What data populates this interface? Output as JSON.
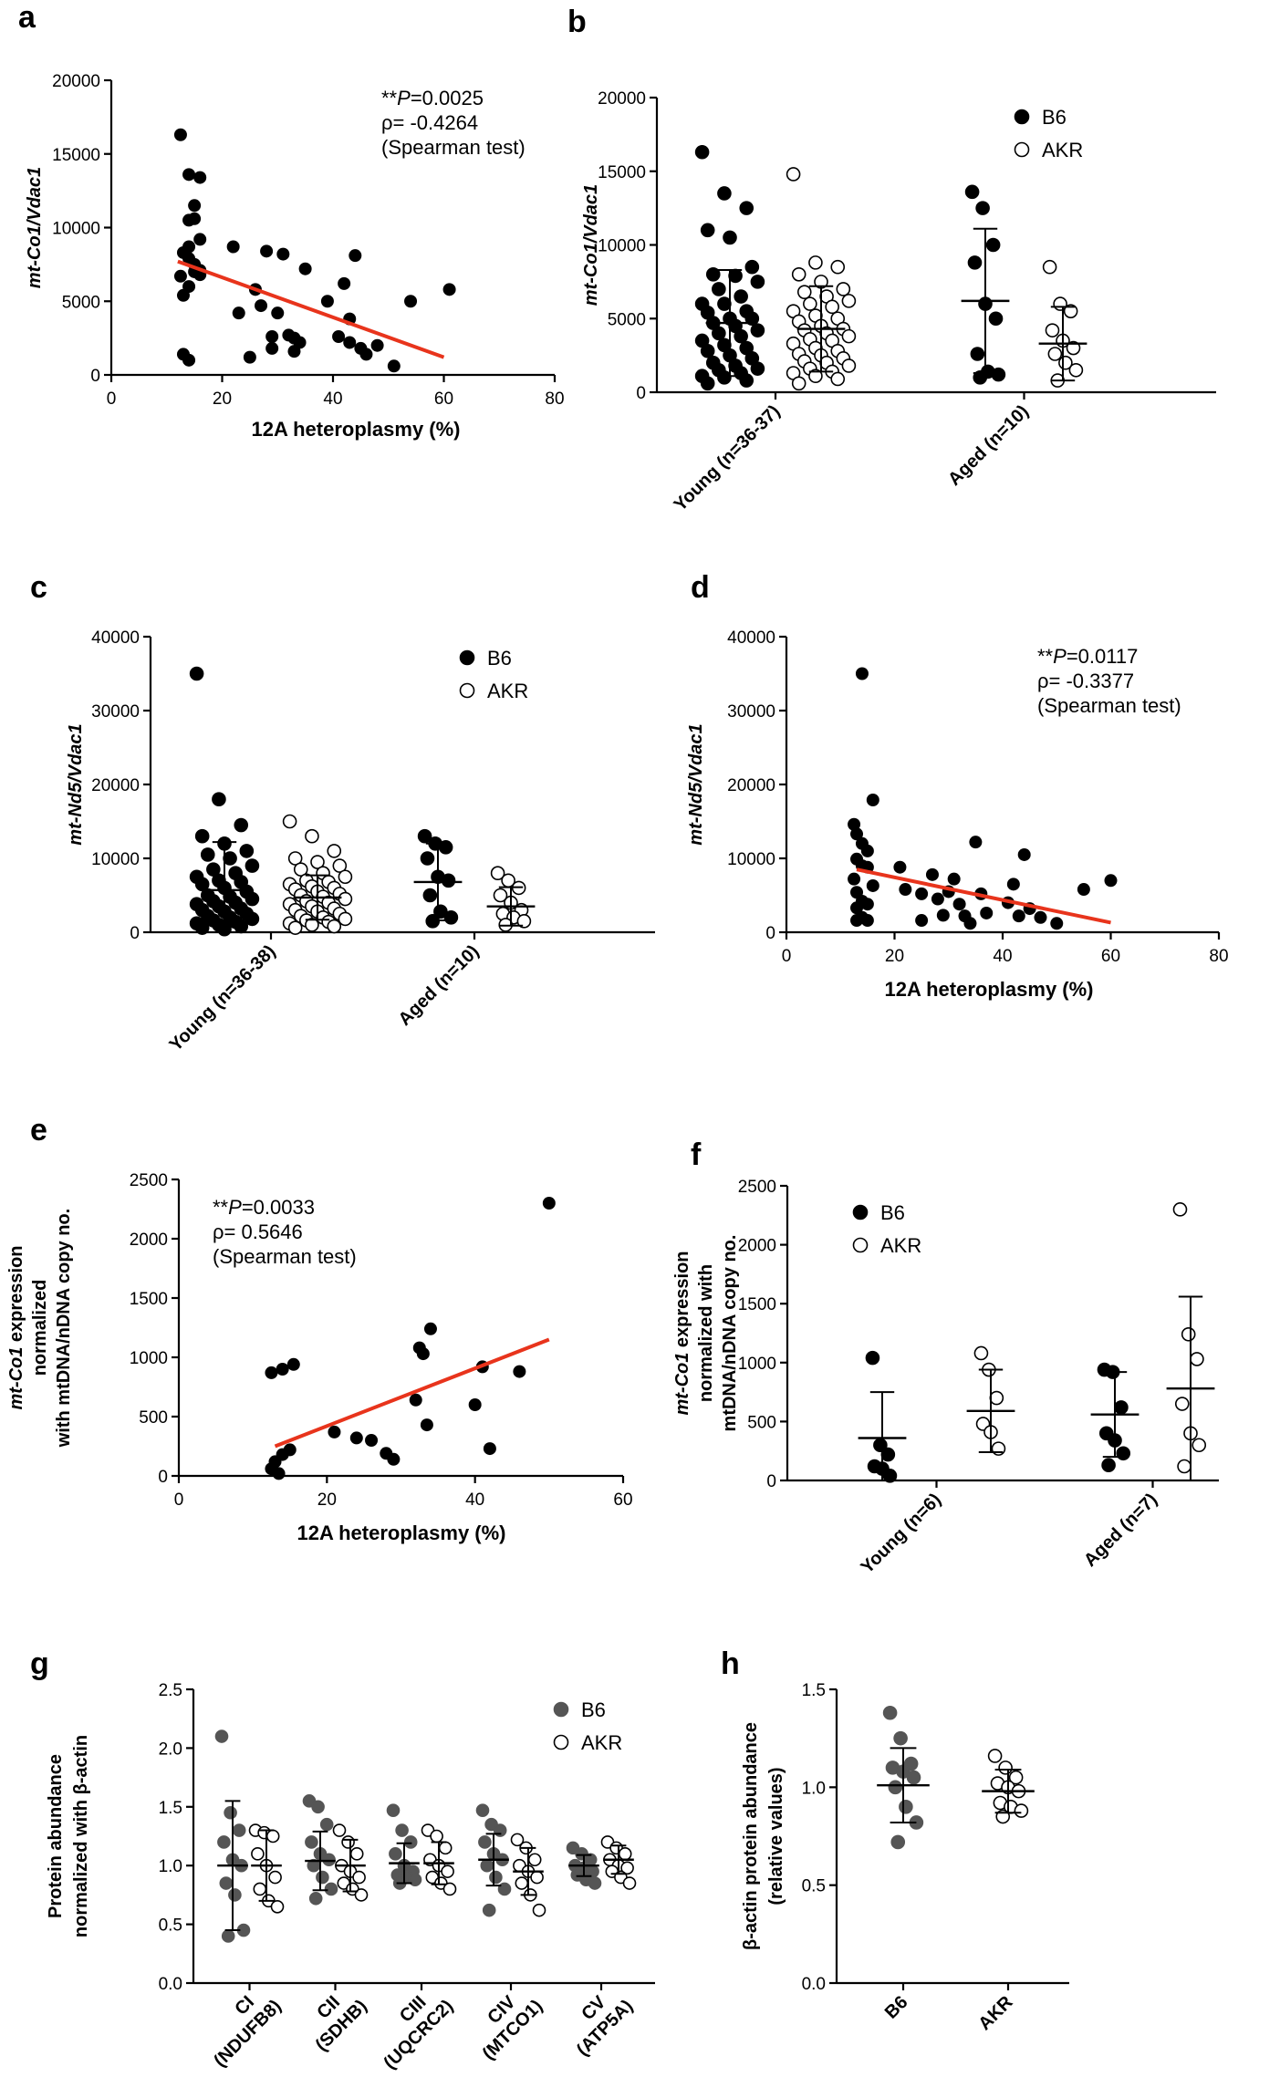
{
  "colors": {
    "trend": "#e8341c",
    "filled": "#000000",
    "filled_gray": "#555555",
    "open_fill": "#ffffff"
  },
  "chart_data": [
    {
      "panel": "a",
      "type": "scatter",
      "ylabel": "mt-Co1/Vdac1",
      "xlabel": "12A heteroplasmy (%)",
      "xlim": [
        0,
        80
      ],
      "ylim": [
        0,
        20000
      ],
      "xticks": [
        "0",
        "20",
        "40",
        "60",
        "80"
      ],
      "yticks": [
        "0",
        "5000",
        "10000",
        "15000",
        "20000"
      ],
      "annotation": [
        "**P=0.0025",
        "ρ= -0.4264",
        "(Spearman test)"
      ],
      "trend": {
        "x": [
          12,
          60
        ],
        "y": [
          7700,
          1200
        ]
      },
      "points": [
        [
          12.5,
          16300
        ],
        [
          12.5,
          6700
        ],
        [
          13,
          5400
        ],
        [
          13,
          8300
        ],
        [
          13,
          1400
        ],
        [
          14,
          7900
        ],
        [
          14,
          13600
        ],
        [
          14,
          8700
        ],
        [
          14,
          10500
        ],
        [
          14,
          6000
        ],
        [
          14,
          1000
        ],
        [
          15,
          10600
        ],
        [
          15,
          11500
        ],
        [
          15,
          7500
        ],
        [
          15,
          7000
        ],
        [
          16,
          13400
        ],
        [
          16,
          9200
        ],
        [
          16,
          6800
        ],
        [
          16,
          7100
        ],
        [
          22,
          8700
        ],
        [
          23,
          4200
        ],
        [
          25,
          1200
        ],
        [
          26,
          5800
        ],
        [
          27,
          4700
        ],
        [
          28,
          8400
        ],
        [
          29,
          1800
        ],
        [
          29,
          2600
        ],
        [
          30,
          4200
        ],
        [
          31,
          8200
        ],
        [
          32,
          2700
        ],
        [
          33,
          1600
        ],
        [
          33,
          2500
        ],
        [
          34,
          2200
        ],
        [
          35,
          7200
        ],
        [
          39,
          5000
        ],
        [
          41,
          2600
        ],
        [
          42,
          6200
        ],
        [
          43,
          3800
        ],
        [
          43,
          2200
        ],
        [
          44,
          8100
        ],
        [
          45,
          1800
        ],
        [
          46,
          1400
        ],
        [
          48,
          2000
        ],
        [
          51,
          600
        ],
        [
          54,
          5000
        ],
        [
          61,
          5800
        ]
      ]
    },
    {
      "panel": "b",
      "type": "scatter",
      "ylabel": "mt-Co1/Vdac1",
      "categories": [
        "Young (n=36-37)",
        "Aged (n=10)"
      ],
      "ylim": [
        0,
        20000
      ],
      "yticks": [
        "0",
        "5000",
        "10000",
        "15000",
        "20000"
      ],
      "legend": [
        "B6",
        "AKR"
      ],
      "series": [
        {
          "name": "B6",
          "mean": [
            4700,
            6200
          ],
          "sd": [
            3600,
            4900
          ],
          "values": [
            [
              16300,
              13500,
              12500,
              11000,
              10500,
              8500,
              8000,
              7900,
              7500,
              7000,
              6500,
              6000,
              6000,
              5500,
              5400,
              5000,
              5000,
              4700,
              4500,
              4200,
              4000,
              3800,
              3500,
              3200,
              3000,
              2800,
              2500,
              2300,
              2000,
              1800,
              1600,
              1500,
              1300,
              1100,
              1000,
              800,
              600
            ],
            [
              13600,
              12500,
              10000,
              8800,
              6000,
              5000,
              2600,
              1400,
              1200,
              1000
            ]
          ]
        },
        {
          "name": "AKR",
          "mean": [
            4300,
            3300
          ],
          "sd": [
            2900,
            2500
          ],
          "values": [
            [
              14800,
              8800,
              8500,
              8000,
              7500,
              7000,
              6800,
              6500,
              6200,
              6000,
              5800,
              5500,
              5200,
              5000,
              4800,
              4500,
              4300,
              4200,
              4000,
              3800,
              3600,
              3500,
              3300,
              3000,
              2800,
              2600,
              2500,
              2300,
              2100,
              2000,
              1800,
              1600,
              1400,
              1300,
              1100,
              900,
              600
            ],
            [
              8500,
              6000,
              5500,
              4200,
              3500,
              3000,
              2600,
              2000,
              1500,
              800
            ]
          ]
        }
      ]
    },
    {
      "panel": "c",
      "type": "scatter",
      "ylabel": "mt-Nd5/Vdac1",
      "categories": [
        "Young (n=36-38)",
        "Aged (n=10)"
      ],
      "ylim": [
        0,
        40000
      ],
      "yticks": [
        "0",
        "10000",
        "20000",
        "30000",
        "40000"
      ],
      "legend": [
        "B6",
        "AKR"
      ],
      "series": [
        {
          "name": "B6",
          "mean": [
            5700,
            6800
          ],
          "sd": [
            6500,
            5200
          ],
          "values": [
            [
              35000,
              18000,
              14500,
              13000,
              12000,
              11000,
              10500,
              10000,
              9000,
              8500,
              8000,
              7500,
              7000,
              6800,
              6500,
              6000,
              5500,
              5000,
              4800,
              4500,
              4200,
              4000,
              3800,
              3500,
              3200,
              3000,
              2800,
              2500,
              2200,
              2000,
              1800,
              1600,
              1400,
              1200,
              1000,
              800,
              600,
              400
            ],
            [
              13000,
              12000,
              11500,
              10000,
              7500,
              7000,
              5000,
              2800,
              2000,
              1500
            ]
          ]
        },
        {
          "name": "AKR",
          "mean": [
            4700,
            3500
          ],
          "sd": [
            3000,
            2600
          ],
          "values": [
            [
              15000,
              13000,
              11000,
              10000,
              9500,
              9000,
              8500,
              8000,
              7500,
              7000,
              6800,
              6500,
              6200,
              6000,
              5800,
              5500,
              5200,
              5000,
              4800,
              4500,
              4200,
              4000,
              3800,
              3500,
              3200,
              3000,
              2800,
              2500,
              2200,
              2000,
              1800,
              1600,
              1400,
              1200,
              1000,
              800,
              600
            ],
            [
              8000,
              7000,
              6000,
              5000,
              4000,
              3000,
              2500,
              2000,
              1500,
              1000
            ]
          ]
        }
      ]
    },
    {
      "panel": "d",
      "type": "scatter",
      "ylabel": "mt-Nd5/Vdac1",
      "xlabel": "12A heteroplasmy (%)",
      "xlim": [
        0,
        80
      ],
      "ylim": [
        0,
        40000
      ],
      "xticks": [
        "0",
        "20",
        "40",
        "60",
        "80"
      ],
      "yticks": [
        "0",
        "10000",
        "20000",
        "30000",
        "40000"
      ],
      "annotation": [
        "**P=0.0117",
        "ρ= -0.3377",
        "(Spearman test)"
      ],
      "trend": {
        "x": [
          13,
          60
        ],
        "y": [
          8500,
          1300
        ]
      },
      "points": [
        [
          12.5,
          14600
        ],
        [
          12.5,
          7200
        ],
        [
          13,
          13300
        ],
        [
          13,
          9900
        ],
        [
          13,
          5400
        ],
        [
          13,
          3300
        ],
        [
          13,
          1600
        ],
        [
          14,
          35000
        ],
        [
          14,
          12000
        ],
        [
          14,
          9000
        ],
        [
          14,
          4200
        ],
        [
          14,
          2000
        ],
        [
          15,
          11000
        ],
        [
          15,
          8800
        ],
        [
          15,
          3800
        ],
        [
          15,
          1600
        ],
        [
          16,
          17900
        ],
        [
          16,
          6300
        ],
        [
          21,
          8800
        ],
        [
          22,
          5800
        ],
        [
          25,
          1600
        ],
        [
          25,
          5200
        ],
        [
          27,
          7800
        ],
        [
          28,
          4500
        ],
        [
          29,
          2300
        ],
        [
          30,
          5500
        ],
        [
          31,
          7200
        ],
        [
          32,
          3800
        ],
        [
          33,
          2200
        ],
        [
          34,
          1200
        ],
        [
          35,
          12200
        ],
        [
          36,
          5200
        ],
        [
          37,
          2600
        ],
        [
          41,
          4000
        ],
        [
          42,
          6500
        ],
        [
          43,
          2200
        ],
        [
          44,
          10500
        ],
        [
          45,
          3200
        ],
        [
          47,
          2000
        ],
        [
          50,
          1200
        ],
        [
          55,
          5800
        ],
        [
          60,
          7000
        ]
      ]
    },
    {
      "panel": "e",
      "type": "scatter",
      "ylabel": "mt-Co1 expression normalized with mtDNA/nDNA copy no.",
      "xlabel": "12A heteroplasmy (%)",
      "xlim": [
        0,
        60
      ],
      "ylim": [
        0,
        2500
      ],
      "xticks": [
        "0",
        "20",
        "40",
        "60"
      ],
      "yticks": [
        "0",
        "500",
        "1000",
        "1500",
        "2000",
        "2500"
      ],
      "annotation": [
        "**P=0.0033",
        "ρ= 0.5646",
        "(Spearman test)"
      ],
      "trend": {
        "x": [
          13,
          50
        ],
        "y": [
          250,
          1150
        ]
      },
      "points": [
        [
          12.5,
          870
        ],
        [
          12.5,
          60
        ],
        [
          13,
          120
        ],
        [
          13.5,
          20
        ],
        [
          14,
          900
        ],
        [
          14,
          180
        ],
        [
          15,
          220
        ],
        [
          15.5,
          940
        ],
        [
          21,
          370
        ],
        [
          24,
          320
        ],
        [
          26,
          300
        ],
        [
          28,
          190
        ],
        [
          29,
          140
        ],
        [
          32,
          640
        ],
        [
          32.5,
          1080
        ],
        [
          33,
          1030
        ],
        [
          34,
          1240
        ],
        [
          33.5,
          430
        ],
        [
          40,
          600
        ],
        [
          41,
          920
        ],
        [
          42,
          230
        ],
        [
          46,
          880
        ],
        [
          50,
          2300
        ]
      ]
    },
    {
      "panel": "f",
      "type": "scatter",
      "ylabel": "mt-Co1 expression normalized with mtDNA/nDNA copy no.",
      "categories": [
        "Young (n=6)",
        "Aged (n=7)"
      ],
      "ylim": [
        0,
        2500
      ],
      "yticks": [
        "0",
        "500",
        "1000",
        "1500",
        "2000",
        "2500"
      ],
      "legend": [
        "B6",
        "AKR"
      ],
      "series": [
        {
          "name": "B6",
          "mean": [
            360,
            560
          ],
          "sd": [
            390,
            360
          ],
          "values": [
            [
              1040,
              300,
              220,
              120,
              100,
              40
            ],
            [
              940,
              920,
              620,
              400,
              340,
              230,
              130
            ]
          ]
        },
        {
          "name": "AKR",
          "mean": [
            590,
            780
          ],
          "sd": [
            350,
            780
          ],
          "values": [
            [
              1080,
              940,
              700,
              480,
              410,
              270
            ],
            [
              2300,
              1240,
              1030,
              650,
              400,
              300,
              120
            ]
          ]
        }
      ]
    },
    {
      "panel": "g",
      "type": "scatter",
      "ylabel": "Protein abundance normalized with β-actin",
      "categories": [
        "CI (NDUFB8)",
        "CII (SDHB)",
        "CIII (UQCRC2)",
        "CIV (MTCO1)",
        "CV (ATP5A)"
      ],
      "ylim": [
        0,
        2.5
      ],
      "yticks": [
        "0.0",
        "0.5",
        "1.0",
        "1.5",
        "2.0",
        "2.5"
      ],
      "legend": [
        "B6",
        "AKR"
      ],
      "series": [
        {
          "name": "B6",
          "mean": [
            1.0,
            1.04,
            1.02,
            1.05,
            1.0
          ],
          "sd": [
            0.55,
            0.25,
            0.17,
            0.22,
            0.09
          ],
          "values": [
            [
              2.1,
              1.45,
              1.3,
              1.2,
              1.05,
              1.0,
              0.85,
              0.75,
              0.45,
              0.4
            ],
            [
              1.55,
              1.5,
              1.35,
              1.2,
              1.1,
              1.05,
              1.0,
              0.9,
              0.8,
              0.72
            ],
            [
              1.47,
              1.3,
              1.2,
              1.1,
              1.0,
              0.95,
              0.92,
              0.9,
              0.88,
              0.85
            ],
            [
              1.47,
              1.35,
              1.3,
              1.2,
              1.1,
              1.05,
              1.0,
              0.9,
              0.8,
              0.62
            ],
            [
              1.15,
              1.1,
              1.05,
              1.0,
              0.98,
              0.95,
              0.92,
              0.88,
              0.85
            ]
          ]
        },
        {
          "name": "AKR",
          "mean": [
            1.0,
            1.0,
            1.02,
            0.95,
            1.05
          ],
          "sd": [
            0.3,
            0.22,
            0.18,
            0.2,
            0.12
          ],
          "values": [
            [
              1.3,
              1.28,
              1.25,
              1.1,
              1.0,
              0.9,
              0.8,
              0.7,
              0.65
            ],
            [
              1.3,
              1.2,
              1.1,
              1.0,
              0.95,
              0.9,
              0.85,
              0.8,
              0.75
            ],
            [
              1.3,
              1.25,
              1.15,
              1.05,
              1.0,
              0.95,
              0.9,
              0.85,
              0.8
            ],
            [
              1.22,
              1.15,
              1.05,
              1.0,
              0.95,
              0.9,
              0.85,
              0.75,
              0.62
            ],
            [
              1.2,
              1.15,
              1.1,
              1.05,
              1.0,
              0.98,
              0.95,
              0.9,
              0.85
            ]
          ]
        }
      ]
    },
    {
      "panel": "h",
      "type": "scatter",
      "ylabel": "β-actin protein abundance (relative values)",
      "categories": [
        "B6",
        "AKR"
      ],
      "ylim": [
        0,
        1.5
      ],
      "yticks": [
        "0.0",
        "0.5",
        "1.0",
        "1.5"
      ],
      "series": [
        {
          "name": "B6",
          "mean": [
            1.01
          ],
          "sd": [
            0.19
          ],
          "values": [
            [
              1.38,
              1.25,
              1.12,
              1.1,
              1.08,
              1.05,
              1.0,
              0.9,
              0.82,
              0.72
            ]
          ]
        },
        {
          "name": "AKR",
          "mean": [
            0.98
          ],
          "sd": [
            0.11
          ],
          "values": [
            [
              1.16,
              1.1,
              1.05,
              1.02,
              1.0,
              0.98,
              0.92,
              0.9,
              0.88,
              0.85
            ]
          ]
        }
      ]
    }
  ]
}
